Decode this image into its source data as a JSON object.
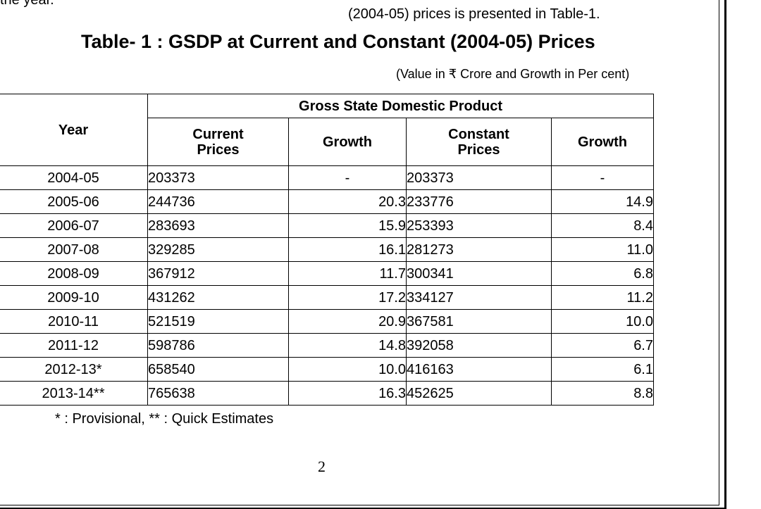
{
  "top_left_text": "the year.",
  "top_right_text": "(2004-05) prices is presented in Table-1.",
  "table_title": "Table- 1 : GSDP at Current and Constant (2004-05) Prices",
  "unit_note": "(Value in ₹ Crore and Growth in Per cent)",
  "table": {
    "group_header": "Gross State Domestic Product",
    "headers": {
      "year": "Year",
      "current_line1": "Current",
      "current_line2": "Prices",
      "growth1": "Growth",
      "constant_line1": "Constant",
      "constant_line2": "Prices",
      "growth2": "Growth"
    },
    "rows": [
      {
        "year": "2004-05",
        "current": "203373",
        "growth_current": "-",
        "constant": "203373",
        "growth_constant": "-"
      },
      {
        "year": "2005-06",
        "current": "244736",
        "growth_current": "20.3",
        "constant": "233776",
        "growth_constant": "14.9"
      },
      {
        "year": "2006-07",
        "current": "283693",
        "growth_current": "15.9",
        "constant": "253393",
        "growth_constant": "8.4"
      },
      {
        "year": "2007-08",
        "current": "329285",
        "growth_current": "16.1",
        "constant": "281273",
        "growth_constant": "11.0"
      },
      {
        "year": "2008-09",
        "current": "367912",
        "growth_current": "11.7",
        "constant": "300341",
        "growth_constant": "6.8"
      },
      {
        "year": "2009-10",
        "current": "431262",
        "growth_current": "17.2",
        "constant": "334127",
        "growth_constant": "11.2"
      },
      {
        "year": "2010-11",
        "current": "521519",
        "growth_current": "20.9",
        "constant": "367581",
        "growth_constant": "10.0"
      },
      {
        "year": "2011-12",
        "current": "598786",
        "growth_current": "14.8",
        "constant": "392058",
        "growth_constant": "6.7"
      },
      {
        "year": "2012-13*",
        "current": "658540",
        "growth_current": "10.0",
        "constant": "416163",
        "growth_constant": "6.1"
      },
      {
        "year": "2013-14**",
        "current": "765638",
        "growth_current": "16.3",
        "constant": "452625",
        "growth_constant": "8.8"
      }
    ]
  },
  "footnote": "* : Provisional,  ** : Quick Estimates",
  "page_number": "2"
}
